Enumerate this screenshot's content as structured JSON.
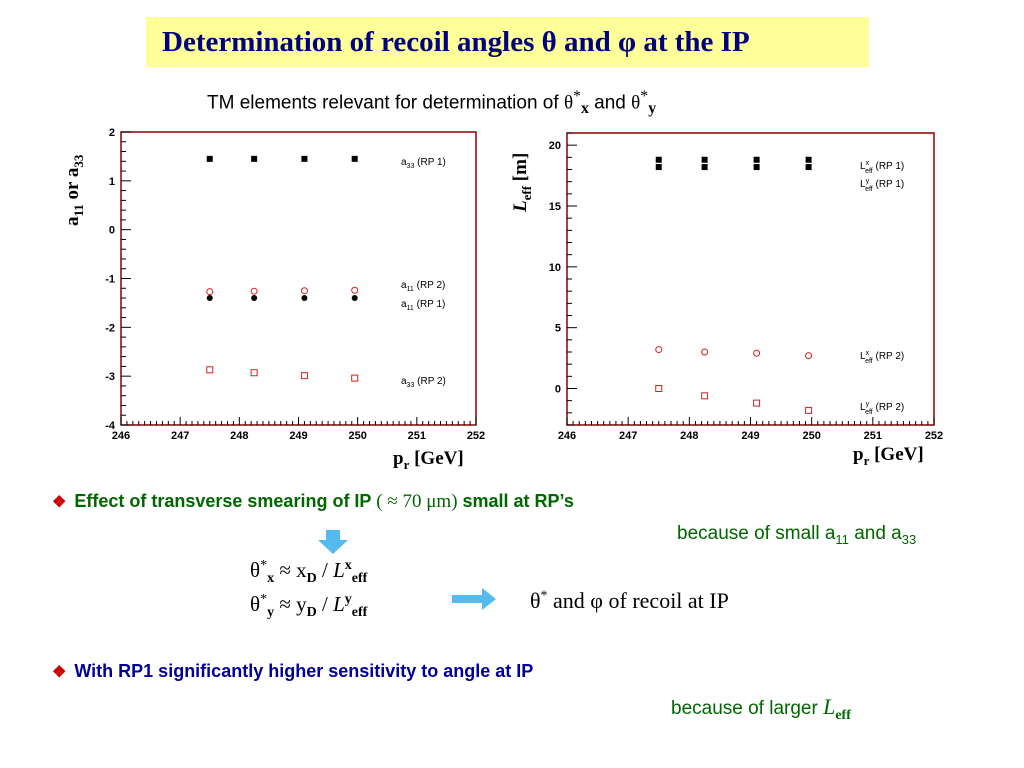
{
  "title": "Determination of recoil angles θ and φ at the IP",
  "subtitle": {
    "prefix": "TM elements relevant for determination of ",
    "theta1": "θ",
    "sup1": "*",
    "sub1": "x",
    "and": " and ",
    "theta2": "θ",
    "sup2": "*",
    "sub2": "y"
  },
  "colors": {
    "title_bg": "#ffff99",
    "title_text": "#000080",
    "frame": "#8b0000",
    "rp2": "#d42020",
    "rp1": "#000000",
    "arrow": "#55bbee"
  },
  "chart_data": [
    {
      "type": "scatter",
      "ylabel_main": "a",
      "ylabel_sub1": "11",
      "ylabel_mid": " or a",
      "ylabel_sub2": "33",
      "xlabel_main": "p",
      "xlabel_sub": "r",
      "xlabel_unit": " [GeV]",
      "xlim": [
        246,
        252
      ],
      "ylim": [
        -4,
        2
      ],
      "xticks": [
        "246",
        "247",
        "248",
        "249",
        "250",
        "251",
        "252"
      ],
      "yticks": [
        "-4",
        "-3",
        "-2",
        "-1",
        "0",
        "1",
        "2"
      ],
      "series": [
        {
          "name": "a33 (RP 1)",
          "label_main": "a",
          "label_sub": "33",
          "label_rest": " (RP 1)",
          "marker": "square-filled",
          "x": [
            247.5,
            248.25,
            249.1,
            249.95
          ],
          "y": [
            1.45,
            1.45,
            1.45,
            1.45
          ]
        },
        {
          "name": "a11 (RP 2)",
          "label_main": "a",
          "label_sub": "11",
          "label_rest": " (RP 2)",
          "marker": "circle-open",
          "x": [
            247.5,
            248.25,
            249.1,
            249.95
          ],
          "y": [
            -1.27,
            -1.26,
            -1.25,
            -1.24
          ]
        },
        {
          "name": "a11 (RP 1)",
          "label_main": "a",
          "label_sub": "11",
          "label_rest": " (RP 1)",
          "marker": "circle-filled",
          "x": [
            247.5,
            248.25,
            249.1,
            249.95
          ],
          "y": [
            -1.4,
            -1.4,
            -1.4,
            -1.4
          ]
        },
        {
          "name": "a33 (RP 2)",
          "label_main": "a",
          "label_sub": "33",
          "label_rest": " (RP 2)",
          "marker": "square-open",
          "x": [
            247.5,
            248.25,
            249.1,
            249.95
          ],
          "y": [
            -2.87,
            -2.93,
            -2.99,
            -3.04
          ]
        }
      ]
    },
    {
      "type": "scatter",
      "ylabel_main": "L",
      "ylabel_sub": "eff",
      "ylabel_unit": " [m]",
      "xlabel_main": "p",
      "xlabel_sub": "r",
      "xlabel_unit": " [GeV]",
      "xlim": [
        246,
        252
      ],
      "ylim": [
        -3,
        21
      ],
      "xticks": [
        "246",
        "247",
        "248",
        "249",
        "250",
        "251",
        "252"
      ],
      "yticks": [
        "0",
        "5",
        "10",
        "15",
        "20"
      ],
      "series": [
        {
          "name": "Lx eff (RP 1)",
          "label_main": "L",
          "label_sup": "x",
          "label_sub": "eff",
          "label_rest": " (RP 1)",
          "marker": "square-filled",
          "x": [
            247.5,
            248.25,
            249.1,
            249.95
          ],
          "y": [
            18.8,
            18.8,
            18.8,
            18.8
          ]
        },
        {
          "name": "Ly eff (RP 1)",
          "label_main": "L",
          "label_sup": "y",
          "label_sub": "eff",
          "label_rest": " (RP 1)",
          "marker": "square-filled",
          "x": [
            247.5,
            248.25,
            249.1,
            249.95
          ],
          "y": [
            18.2,
            18.2,
            18.2,
            18.2
          ]
        },
        {
          "name": "Lx eff (RP 2)",
          "label_main": "L",
          "label_sup": "x",
          "label_sub": "eff",
          "label_rest": " (RP 2)",
          "marker": "circle-open",
          "x": [
            247.5,
            248.25,
            249.1,
            249.95
          ],
          "y": [
            3.2,
            3.0,
            2.9,
            2.7
          ]
        },
        {
          "name": "Ly eff (RP 2)",
          "label_main": "L",
          "label_sup": "y",
          "label_sub": "eff",
          "label_rest": " (RP 2)",
          "marker": "square-open",
          "x": [
            247.5,
            248.25,
            249.1,
            249.95
          ],
          "y": [
            0.0,
            -0.6,
            -1.2,
            -1.8
          ]
        }
      ]
    }
  ],
  "bullets": {
    "b1_main": "Effect of transverse smearing of IP",
    "b1_paren_open": " ( ≈ 70 ",
    "b1_unit": "μm",
    "b1_paren_close": ")",
    "b1_tail": " small at RP’s",
    "b1_note_prefix": "because of small a",
    "b1_note_sub1": "11",
    "b1_note_and": " and a",
    "b1_note_sub2": "33",
    "b2_main": "With RP1 significantly higher sensitivity to angle at IP",
    "b2_note_prefix": "because of larger ",
    "b2_note_L": "L",
    "b2_note_sub": "eff"
  },
  "formulas": {
    "f1_theta": "θ",
    "f1_sup": "*",
    "f1_sub": "x",
    "f1_approx": " ≈ x",
    "f1_subD": "D",
    "f1_slash": " / ",
    "f1_L": "L",
    "f1_supx": "x",
    "f1_subeff": "eff",
    "f2_theta": "θ",
    "f2_sup": "*",
    "f2_sub": "y",
    "f2_approx": " ≈ y",
    "f2_subD": "D",
    "f2_slash": " / ",
    "f2_L": "L",
    "f2_supy": "y",
    "f2_subeff": "eff",
    "result_theta": "θ",
    "result_sup": "*",
    "result_rest": " and φ of recoil at IP"
  }
}
